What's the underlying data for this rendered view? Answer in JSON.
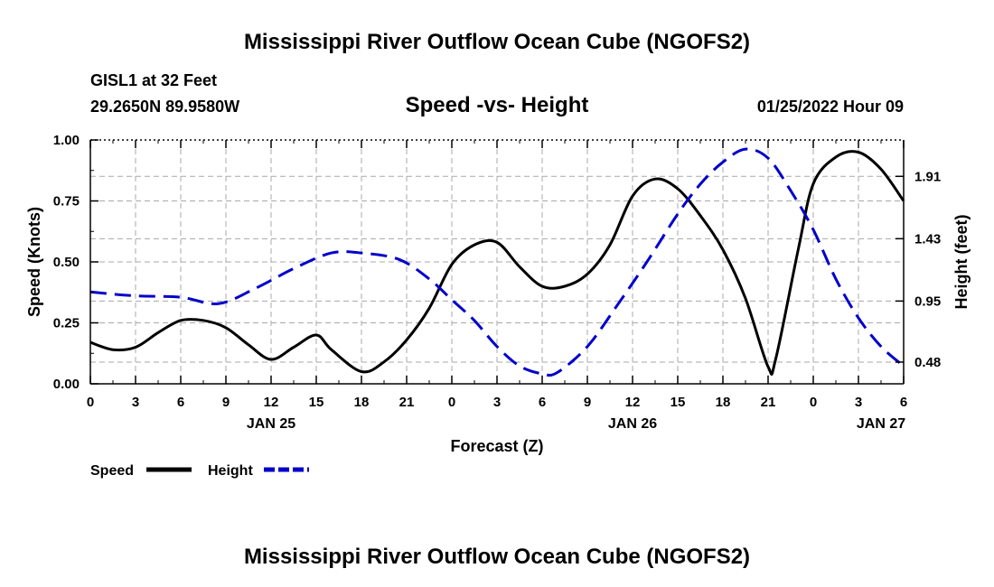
{
  "page": {
    "title_top": "Mississippi River Outflow Ocean Cube (NGOFS2)",
    "title_bottom": "Mississippi River Outflow Ocean Cube (NGOFS2)"
  },
  "chart_data": {
    "type": "line",
    "title": "Speed -vs- Height",
    "station": "GISL1 at 32 Feet",
    "location": "29.2650N  89.9580W",
    "datetime": "01/25/2022 Hour 09",
    "xlabel": "Forecast (Z)",
    "ylabel": "Speed (Knots)",
    "y2label": "Height (feet)",
    "xlim": [
      0,
      54
    ],
    "ylim": [
      0,
      1
    ],
    "y2lim": [
      0.313,
      2.19
    ],
    "grid": true,
    "legend_position": "bottom-left",
    "x_ticks": [
      0,
      3,
      6,
      9,
      12,
      15,
      18,
      21,
      24,
      27,
      30,
      33,
      36,
      39,
      42,
      45,
      48,
      51,
      54
    ],
    "x_tick_labels": [
      "0",
      "3",
      "6",
      "9",
      "12",
      "15",
      "18",
      "21",
      "0",
      "3",
      "6",
      "9",
      "12",
      "15",
      "18",
      "21",
      "0",
      "3",
      "6"
    ],
    "y_ticks": [
      0,
      0.25,
      0.5,
      0.75,
      1.0
    ],
    "y_tick_labels": [
      "0.00",
      "0.25",
      "0.50",
      "0.75",
      "1.00"
    ],
    "y2_ticks": [
      0.48,
      0.95,
      1.43,
      1.91
    ],
    "y2_tick_labels": [
      "0.48",
      "0.95",
      "1.43",
      "1.91"
    ],
    "date_labels": [
      {
        "x": 12,
        "label": "JAN 25"
      },
      {
        "x": 36,
        "label": "JAN 26"
      },
      {
        "x": 52.5,
        "label": "JAN 27"
      }
    ],
    "series": [
      {
        "name": "Speed",
        "axis": "left",
        "color": "#000000",
        "dash": "solid",
        "points": [
          [
            0,
            0.17
          ],
          [
            1.5,
            0.14
          ],
          [
            3,
            0.15
          ],
          [
            4.5,
            0.21
          ],
          [
            6,
            0.26
          ],
          [
            7.5,
            0.26
          ],
          [
            9,
            0.23
          ],
          [
            10.5,
            0.16
          ],
          [
            12,
            0.1
          ],
          [
            13.5,
            0.15
          ],
          [
            15,
            0.2
          ],
          [
            16,
            0.14
          ],
          [
            18,
            0.05
          ],
          [
            19.5,
            0.09
          ],
          [
            21,
            0.18
          ],
          [
            22.5,
            0.31
          ],
          [
            24,
            0.49
          ],
          [
            25.5,
            0.57
          ],
          [
            27,
            0.58
          ],
          [
            28.5,
            0.48
          ],
          [
            30,
            0.4
          ],
          [
            31.5,
            0.4
          ],
          [
            33,
            0.45
          ],
          [
            34.5,
            0.57
          ],
          [
            36,
            0.77
          ],
          [
            37.5,
            0.84
          ],
          [
            39,
            0.8
          ],
          [
            40.5,
            0.69
          ],
          [
            42,
            0.55
          ],
          [
            43.5,
            0.35
          ],
          [
            45,
            0.07
          ],
          [
            45.5,
            0.1
          ],
          [
            47,
            0.55
          ],
          [
            48,
            0.82
          ],
          [
            49.5,
            0.93
          ],
          [
            51,
            0.95
          ],
          [
            52.5,
            0.88
          ],
          [
            54,
            0.75
          ]
        ]
      },
      {
        "name": "Height",
        "axis": "right",
        "color": "#0000cc",
        "dash": "dashed",
        "points": [
          [
            0,
            1.02
          ],
          [
            3,
            0.99
          ],
          [
            6,
            0.98
          ],
          [
            8.5,
            0.93
          ],
          [
            11,
            1.05
          ],
          [
            13.5,
            1.2
          ],
          [
            16,
            1.32
          ],
          [
            18,
            1.32
          ],
          [
            20.5,
            1.27
          ],
          [
            22.5,
            1.12
          ],
          [
            24,
            0.96
          ],
          [
            25.5,
            0.8
          ],
          [
            27,
            0.6
          ],
          [
            28.5,
            0.45
          ],
          [
            30,
            0.39
          ],
          [
            31,
            0.4
          ],
          [
            33,
            0.6
          ],
          [
            35,
            0.92
          ],
          [
            37,
            1.26
          ],
          [
            39,
            1.62
          ],
          [
            40.5,
            1.85
          ],
          [
            42,
            2.02
          ],
          [
            43.5,
            2.12
          ],
          [
            45,
            2.05
          ],
          [
            46.5,
            1.8
          ],
          [
            48,
            1.5
          ],
          [
            49.5,
            1.12
          ],
          [
            51,
            0.82
          ],
          [
            52.5,
            0.6
          ],
          [
            54,
            0.45
          ]
        ]
      }
    ]
  }
}
